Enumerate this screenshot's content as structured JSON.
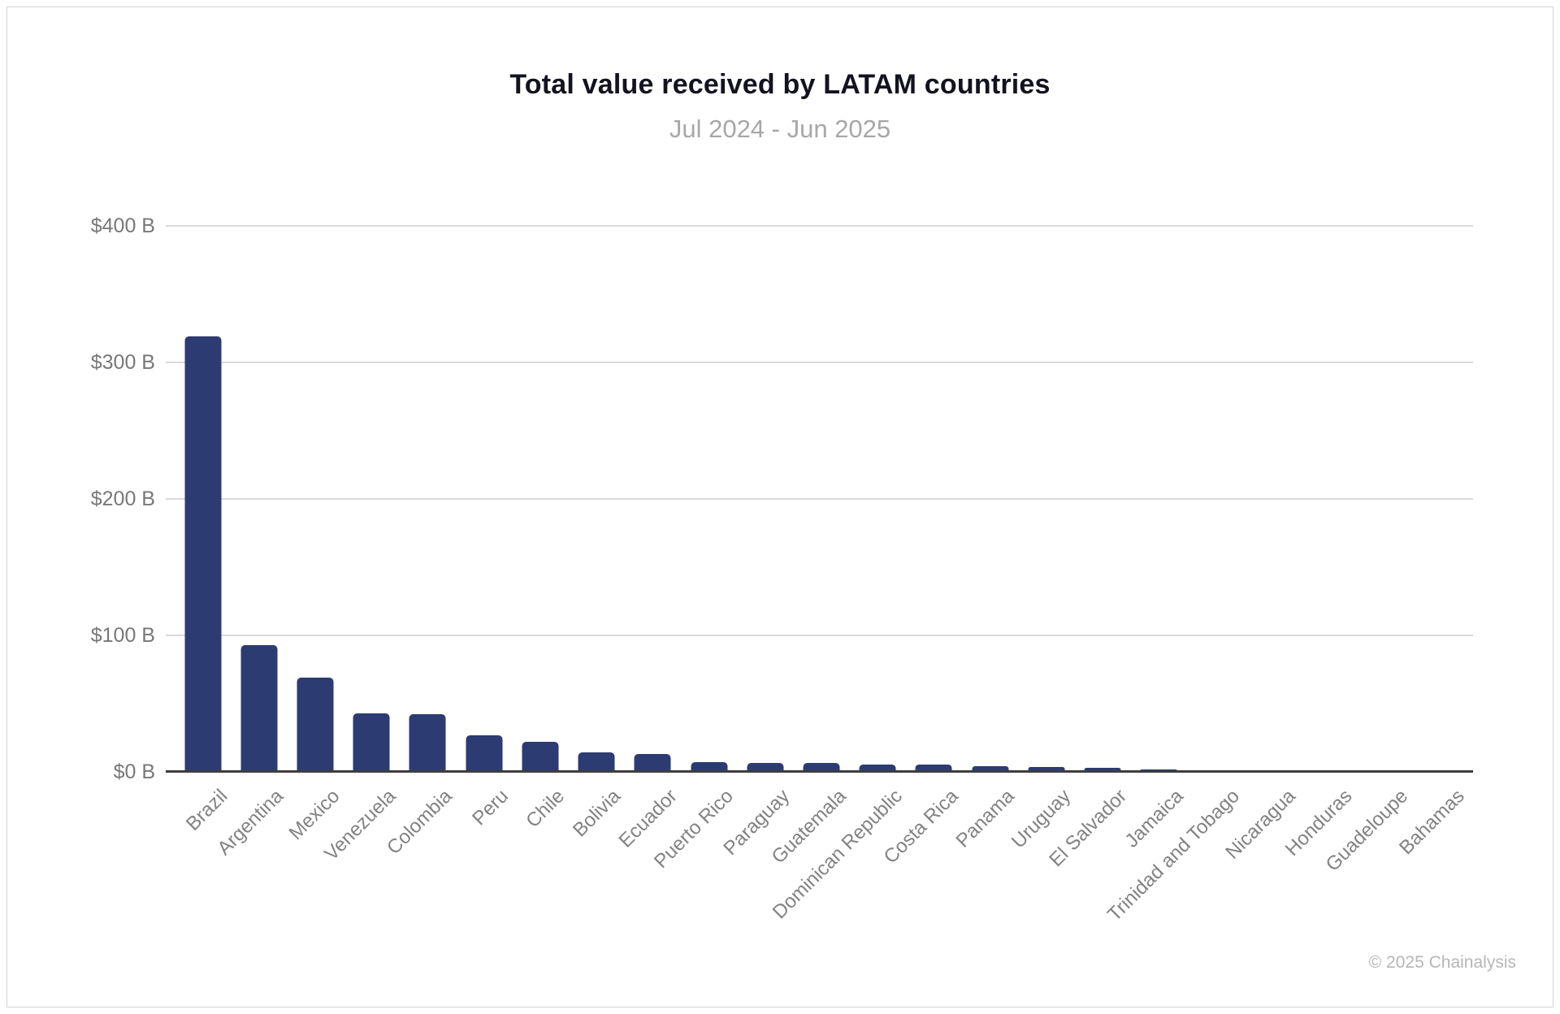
{
  "header": {
    "title": "Total value received by LATAM countries",
    "subtitle": "Jul 2024 - Jun 2025"
  },
  "footer": {
    "copyright": "© 2025 Chainalysis"
  },
  "colors": {
    "bar": "#2c3b72",
    "gridline": "#d9d9d9",
    "axis_line": "#3e3e3e",
    "y_label": "#787878",
    "x_label": "#828282",
    "title": "#131320",
    "subtitle": "#a7a7a7",
    "copyright": "#b6b6b6",
    "card_border": "#d4d4d4"
  },
  "chart_data": {
    "type": "bar",
    "title": "Total value received by LATAM countries",
    "subtitle": "Jul 2024 - Jun 2025",
    "unit": "USD billions",
    "categories": [
      "Brazil",
      "Argentina",
      "Mexico",
      "Venezuela",
      "Colombia",
      "Peru",
      "Chile",
      "Bolivia",
      "Ecuador",
      "Puerto Rico",
      "Paraguay",
      "Guatemala",
      "Dominican Republic",
      "Costa Rica",
      "Panama",
      "Uruguay",
      "El Salvador",
      "Jamaica",
      "Trinidad and Tobago",
      "Nicaragua",
      "Honduras",
      "Guadeloupe",
      "Bahamas"
    ],
    "values": [
      319,
      93,
      69,
      43,
      42,
      27,
      22,
      14,
      13,
      7,
      6.6,
      6.5,
      5.5,
      5.3,
      4.2,
      3.3,
      3.2,
      1.6,
      0.6,
      0.5,
      0.4,
      0.15,
      0.1
    ],
    "xlabel": "",
    "ylabel": "",
    "ylim": [
      0,
      400
    ],
    "ytick_step": 100,
    "ytick_labels": [
      "$0 B",
      "$100 B",
      "$200 B",
      "$300 B",
      "$400 B"
    ],
    "grid": true,
    "legend": false,
    "bar_color": "#2c3b72"
  }
}
